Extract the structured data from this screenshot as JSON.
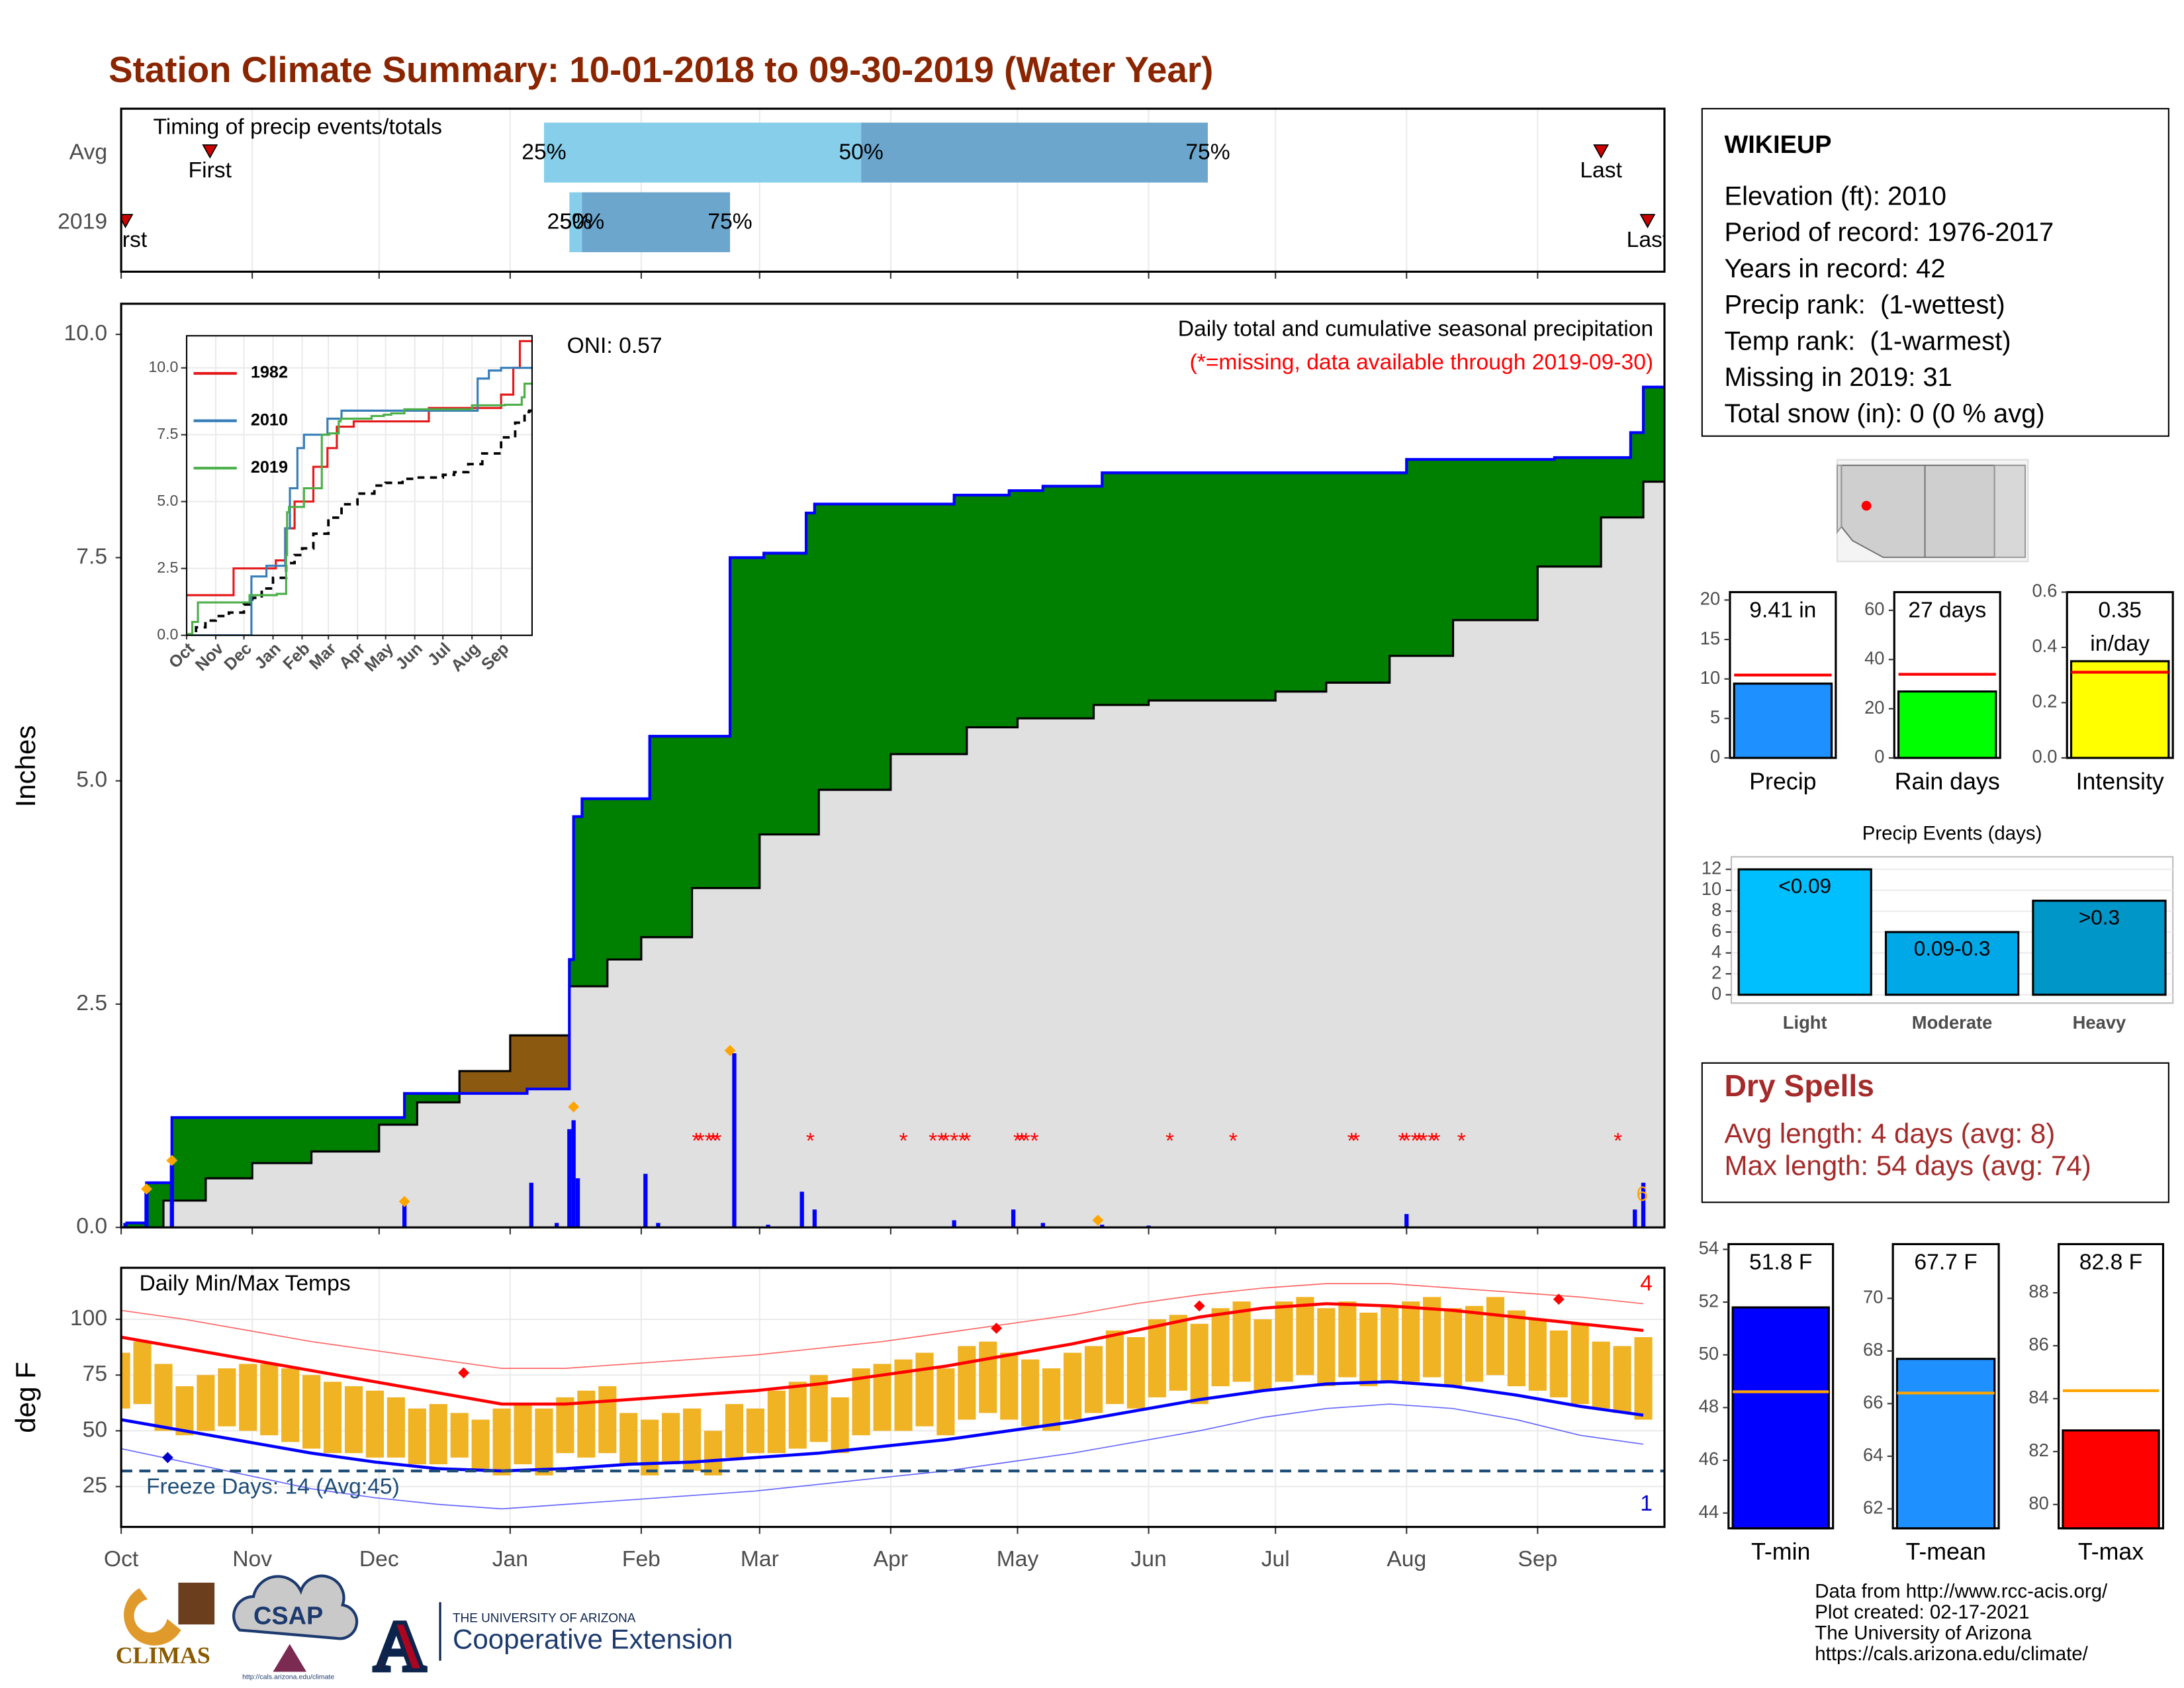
{
  "title": "Station Climate Summary: 10-01-2018 to 09-30-2019 (Water Year)",
  "info": {
    "station": "WIKIEUP",
    "lines": [
      "Elevation (ft): 2010",
      "Period of record: 1976-2017",
      "Years in record: 42",
      "Precip rank:  (1-wettest)",
      "Temp rank:  (1-warmest)",
      "Missing in 2019: 31",
      "Total snow (in): 0 (0 % avg)"
    ]
  },
  "dry_spells": {
    "title": "Dry Spells",
    "lines": [
      "Avg length: 4 days (avg: 8)",
      "Max length: 54 days (avg: 74)"
    ]
  },
  "credits": [
    "Data from http://www.rcc-acis.org/",
    "Plot created: 02-17-2021",
    "The University of Arizona",
    "https://cals.arizona.edu/climate/"
  ],
  "logos": {
    "climas": "CLIMAS",
    "csap": "CSAP",
    "csap_url": "http://cals.arizona.edu/climate",
    "university": "THE UNIVERSITY OF ARIZONA",
    "extension": "Cooperative Extension"
  },
  "chart_data": [
    {
      "type": "timing",
      "label": "Timing of precip events/totals",
      "xlim": [
        0,
        365
      ],
      "grid": true,
      "labels": {
        "first": "First",
        "last": "Last",
        "q25": "25%",
        "q50": "50%",
        "q75": "75%"
      },
      "colors": {
        "q25": "#87ceeb",
        "q50": "#6ca6cd",
        "marker": "#cc0000"
      },
      "rows": [
        {
          "name": "Avg",
          "first": 21,
          "q25": 100,
          "q50": 175,
          "q75": 257,
          "last": 350
        },
        {
          "name": "2019",
          "first": 1,
          "q25": 106,
          "q50": 109,
          "q75": 144,
          "last": 361
        }
      ]
    },
    {
      "type": "cumulative",
      "title": "Daily total and cumulative seasonal precipitation",
      "note": "(*=missing, data available through 2019-09-30)",
      "annotation": "ONI: 0.57",
      "ylabel": "Inches",
      "xlim": [
        0,
        365
      ],
      "ylim": [
        0,
        10.343
      ],
      "yticks": [
        {
          "value": 0,
          "label": "0.0"
        },
        {
          "value": 2.5,
          "label": "2.5"
        },
        {
          "value": 5,
          "label": "5.0"
        },
        {
          "value": 7.5,
          "label": "7.5"
        },
        {
          "value": 10,
          "label": "10.0"
        }
      ],
      "fill_above": "#008000",
      "fill_below": "#8b5a10",
      "avg_fill": "#e0e0e0",
      "series": [
        {
          "name": "2019",
          "color": "#0000ff",
          "x": [
            1,
            6,
            12,
            67,
            96,
            106,
            107,
            109,
            125,
            144,
            152,
            162,
            164,
            197,
            210,
            218,
            232,
            304,
            339,
            357,
            360
          ],
          "values": [
            0.05,
            0.5,
            1.23,
            1.5,
            1.55,
            3.0,
            4.6,
            4.8,
            5.5,
            7.5,
            7.55,
            8.0,
            8.1,
            8.2,
            8.25,
            8.3,
            8.45,
            8.6,
            8.62,
            8.9,
            9.41
          ]
        },
        {
          "name": "Avg",
          "color": "#000000",
          "x": [
            0,
            10,
            20,
            31,
            45,
            61,
            70,
            80,
            92,
            106,
            115,
            123,
            135,
            151,
            165,
            182,
            200,
            212,
            230,
            243,
            260,
            273,
            285,
            300,
            315,
            335,
            350,
            360,
            365
          ],
          "values": [
            0,
            0.3,
            0.55,
            0.72,
            0.85,
            1.15,
            1.4,
            1.75,
            2.15,
            2.7,
            3.0,
            3.25,
            3.8,
            4.4,
            4.9,
            5.3,
            5.6,
            5.7,
            5.85,
            5.9,
            5.9,
            6.0,
            6.1,
            6.4,
            6.8,
            7.4,
            7.95,
            8.35,
            8.4
          ]
        }
      ],
      "daily": {
        "color": "#0000ff",
        "x": [
          1,
          6,
          12,
          67,
          97,
          103,
          106,
          107,
          108,
          124,
          127,
          145,
          153,
          161,
          164,
          197,
          211,
          218,
          232,
          243,
          304,
          358,
          360
        ],
        "values": [
          0.05,
          0.45,
          0.7,
          0.25,
          0.5,
          0.05,
          1.1,
          1.2,
          0.55,
          0.6,
          0.05,
          1.95,
          0.03,
          0.4,
          0.2,
          0.08,
          0.2,
          0.05,
          0.03,
          0.02,
          0.15,
          0.2,
          0.5
        ]
      },
      "events": {
        "color": "#ffa500",
        "x": [
          6,
          12,
          67,
          107,
          144,
          231
        ],
        "values": [
          0.43,
          0.75,
          0.29,
          1.35,
          1.98,
          0.08
        ]
      },
      "missing": {
        "symbol": "*",
        "color": "#ff0000",
        "x": [
          136,
          137,
          139,
          140,
          141,
          163,
          185,
          192,
          194,
          195,
          197,
          199,
          200,
          212,
          213,
          214,
          216,
          248,
          263,
          291,
          292,
          303,
          304,
          306,
          307,
          308,
          310,
          311,
          317,
          354
        ]
      },
      "end_label": "6",
      "end_color": "#ffa500"
    },
    {
      "type": "line",
      "xlim": [
        0,
        368
      ],
      "ylim": [
        0,
        11.2
      ],
      "grid": true,
      "current_color": "#4daf4a",
      "xticks": [
        {
          "value": 0,
          "label": "Oct"
        },
        {
          "value": 31,
          "label": "Nov"
        },
        {
          "value": 61,
          "label": "Dec"
        },
        {
          "value": 92,
          "label": "Jan"
        },
        {
          "value": 123,
          "label": "Feb"
        },
        {
          "value": 151,
          "label": "Mar"
        },
        {
          "value": 182,
          "label": "Apr"
        },
        {
          "value": 212,
          "label": "May"
        },
        {
          "value": 243,
          "label": "Jun"
        },
        {
          "value": 273,
          "label": "Jul"
        },
        {
          "value": 304,
          "label": "Aug"
        },
        {
          "value": 335,
          "label": "Sep"
        }
      ],
      "yticks": [
        {
          "value": 0,
          "label": "0.0"
        },
        {
          "value": 2.5,
          "label": "2.5"
        },
        {
          "value": 5,
          "label": "5.0"
        },
        {
          "value": 7.5,
          "label": "7.5"
        },
        {
          "value": 10,
          "label": "10.0"
        }
      ],
      "series": [
        {
          "name": "1982",
          "color": "#e41a1c",
          "x": [
            0,
            50,
            95,
            105,
            115,
            135,
            150,
            160,
            178,
            245,
            258,
            315,
            335,
            348,
            355
          ],
          "values": [
            1.5,
            2.5,
            2.8,
            4.0,
            5.0,
            6.3,
            7.0,
            7.8,
            8.0,
            8.0,
            8.5,
            8.5,
            9.0,
            10.0,
            11.0
          ]
        },
        {
          "name": "2010",
          "color": "#377eb8",
          "x": [
            0,
            69,
            85,
            105,
            110,
            118,
            125,
            150,
            165,
            300,
            310,
            322,
            335
          ],
          "values": [
            0,
            2.2,
            2.6,
            4.0,
            5.5,
            7.0,
            7.5,
            8.1,
            8.4,
            8.4,
            9.6,
            9.9,
            10.0
          ]
        }
      ]
    },
    {
      "type": "range",
      "title": "Daily Min/Max Temps",
      "ylabel": "deg F",
      "xlim": [
        0,
        365
      ],
      "ylim": [
        6.9,
        123.1
      ],
      "yticks": [
        25,
        50,
        75,
        100
      ],
      "grid": true,
      "xticks": [
        {
          "value": 0,
          "label": "Oct"
        },
        {
          "value": 31,
          "label": "Nov"
        },
        {
          "value": 61,
          "label": "Dec"
        },
        {
          "value": 92,
          "label": "Jan"
        },
        {
          "value": 123,
          "label": "Feb"
        },
        {
          "value": 151,
          "label": "Mar"
        },
        {
          "value": 182,
          "label": "Apr"
        },
        {
          "value": 212,
          "label": "May"
        },
        {
          "value": 243,
          "label": "Jun"
        },
        {
          "value": 273,
          "label": "Jul"
        },
        {
          "value": 304,
          "label": "Aug"
        },
        {
          "value": 335,
          "label": "Sep"
        }
      ],
      "bar_color": "#f0b323",
      "x": [
        0,
        5,
        10,
        15,
        20,
        25,
        30,
        35,
        40,
        45,
        50,
        55,
        60,
        65,
        70,
        75,
        80,
        85,
        90,
        95,
        100,
        105,
        110,
        115,
        120,
        125,
        130,
        135,
        140,
        145,
        150,
        155,
        160,
        165,
        170,
        175,
        180,
        185,
        190,
        195,
        200,
        205,
        210,
        215,
        220,
        225,
        230,
        235,
        240,
        245,
        250,
        255,
        260,
        265,
        270,
        275,
        280,
        285,
        290,
        295,
        300,
        305,
        310,
        315,
        320,
        325,
        330,
        335,
        340,
        345,
        350,
        355,
        360
      ],
      "max": [
        85,
        90,
        80,
        70,
        75,
        78,
        80,
        80,
        78,
        75,
        72,
        70,
        68,
        65,
        60,
        62,
        58,
        55,
        60,
        62,
        60,
        65,
        68,
        70,
        58,
        55,
        58,
        60,
        50,
        62,
        60,
        68,
        72,
        75,
        65,
        78,
        80,
        82,
        85,
        78,
        88,
        90,
        85,
        82,
        78,
        85,
        88,
        95,
        92,
        100,
        102,
        98,
        105,
        108,
        100,
        108,
        110,
        105,
        108,
        103,
        106,
        108,
        110,
        105,
        106,
        110,
        104,
        100,
        95,
        98,
        90,
        88,
        92
      ],
      "min": [
        60,
        62,
        50,
        48,
        50,
        52,
        50,
        48,
        45,
        42,
        40,
        40,
        38,
        38,
        35,
        35,
        38,
        33,
        30,
        35,
        30,
        40,
        38,
        40,
        35,
        30,
        35,
        32,
        30,
        38,
        40,
        40,
        42,
        45,
        40,
        48,
        50,
        50,
        52,
        48,
        55,
        58,
        55,
        52,
        50,
        55,
        58,
        62,
        60,
        65,
        68,
        62,
        70,
        72,
        68,
        72,
        75,
        70,
        74,
        70,
        72,
        72,
        74,
        70,
        72,
        75,
        70,
        68,
        65,
        62,
        60,
        58,
        55
      ],
      "avg_x": [
        0,
        15,
        30,
        45,
        60,
        75,
        90,
        105,
        120,
        135,
        150,
        165,
        180,
        195,
        210,
        225,
        240,
        255,
        270,
        285,
        300,
        315,
        330,
        345,
        360
      ],
      "avg_max": {
        "color": "#ff0000",
        "values": [
          92,
          87,
          82,
          77,
          72,
          67,
          62,
          62,
          64,
          66,
          68,
          71,
          75,
          79,
          84,
          89,
          95,
          101,
          105,
          107,
          106,
          104,
          101,
          98,
          95
        ]
      },
      "avg_min": {
        "color": "#0000ff",
        "values": [
          55,
          50,
          45,
          40,
          36,
          33,
          32,
          33,
          35,
          36,
          38,
          40,
          43,
          46,
          50,
          54,
          59,
          64,
          68,
          71,
          72,
          70,
          66,
          61,
          57
        ]
      },
      "rec_high": {
        "color": "#ff6666",
        "values": [
          104,
          100,
          95,
          90,
          86,
          82,
          78,
          78,
          80,
          82,
          84,
          87,
          90,
          94,
          98,
          102,
          107,
          111,
          114,
          116,
          116,
          114,
          112,
          110,
          107
        ]
      },
      "rec_low": {
        "color": "#6666ff",
        "values": [
          42,
          36,
          30,
          24,
          20,
          17,
          15,
          17,
          19,
          21,
          23,
          26,
          29,
          32,
          36,
          40,
          45,
          50,
          56,
          60,
          62,
          60,
          55,
          48,
          44
        ]
      },
      "freeze": {
        "value": 32,
        "label": "Freeze Days: 14 (Avg:45)",
        "color": "#1f4e79"
      },
      "record_highs": {
        "label": "4",
        "color": "#ff0000",
        "x": [
          81,
          207,
          255,
          340
        ],
        "values": [
          76,
          96,
          106,
          109
        ]
      },
      "record_lows": {
        "label": "1",
        "color": "#0000cc",
        "x": [
          11
        ],
        "values": [
          38
        ]
      }
    },
    {
      "type": "bar",
      "categories": [
        "Precip"
      ],
      "values": [
        9.41
      ],
      "value_labels": [
        "9.41 in"
      ],
      "avg": 10.5,
      "avg_color": "#ff0000",
      "color": "#1e90ff",
      "ylim": [
        0,
        21
      ],
      "yticks": [
        0,
        5,
        10,
        15,
        20
      ]
    },
    {
      "type": "bar",
      "categories": [
        "Rain days"
      ],
      "values": [
        27
      ],
      "value_labels": [
        "27 days"
      ],
      "avg": 34,
      "avg_color": "#ff0000",
      "color": "#00ff00",
      "ylim": [
        0,
        67.4
      ],
      "yticks": [
        0,
        20,
        40,
        60
      ]
    },
    {
      "type": "bar",
      "categories": [
        "Intensity"
      ],
      "values": [
        0.35
      ],
      "value_labels": [
        "0.35 in/day"
      ],
      "avg": 0.31,
      "avg_color": "#ff0000",
      "color": "#ffff00",
      "ylim": [
        0,
        0.6
      ],
      "yticks": [
        {
          "value": 0,
          "label": "0.0"
        },
        {
          "value": 0.2,
          "label": "0.2"
        },
        {
          "value": 0.4,
          "label": "0.4"
        },
        {
          "value": 0.6,
          "label": "0.6"
        }
      ]
    },
    {
      "type": "bar",
      "title": "Precip Events (days)",
      "categories": [
        "Light",
        "Moderate",
        "Heavy"
      ],
      "values": [
        12,
        6,
        9
      ],
      "thresholds": [
        "<0.09",
        "0.09-0.3",
        ">0.3"
      ],
      "colors": [
        "#00bfff",
        "#00a8e8",
        "#0096c8"
      ],
      "ylim": [
        -0.8,
        13.2
      ],
      "yticks": [
        0,
        2,
        4,
        6,
        8,
        10,
        12
      ],
      "grid": true
    },
    {
      "type": "bar",
      "categories": [
        "T-min"
      ],
      "values": [
        51.8
      ],
      "value_labels": [
        "51.8 F"
      ],
      "avg": 48.6,
      "avg_color": "#ffa500",
      "color": "#0000ff",
      "ylim": [
        43.42,
        54.2
      ],
      "yticks": [
        44,
        46,
        48,
        50,
        52,
        54
      ]
    },
    {
      "type": "bar",
      "categories": [
        "T-mean"
      ],
      "values": [
        67.7
      ],
      "value_labels": [
        "67.7 F"
      ],
      "avg": 66.4,
      "avg_color": "#ffa500",
      "color": "#1e90ff",
      "ylim": [
        61.26,
        72.06
      ],
      "yticks": [
        62,
        64,
        66,
        68,
        70
      ]
    },
    {
      "type": "bar",
      "categories": [
        "T-max"
      ],
      "values": [
        82.8
      ],
      "value_labels": [
        "82.8 F"
      ],
      "avg": 84.3,
      "avg_color": "#ffa500",
      "color": "#ff0000",
      "ylim": [
        79.1,
        89.84
      ],
      "yticks": [
        80,
        82,
        84,
        86,
        88
      ]
    }
  ]
}
